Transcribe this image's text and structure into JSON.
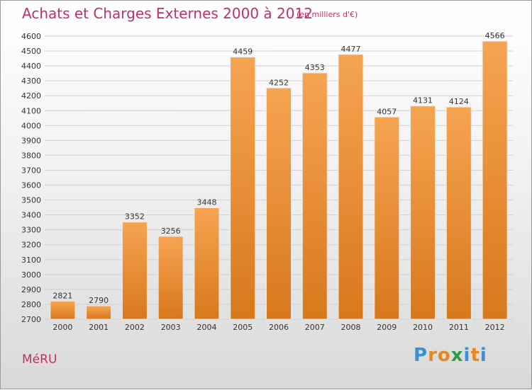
{
  "title": "Achats et Charges Externes 2000 à 2012",
  "subtitle": "(en milliers d'€)",
  "city": "MéRU",
  "logo": {
    "text": "Proxiti",
    "letters": [
      {
        "ch": "P",
        "color": "#3a8fd6"
      },
      {
        "ch": "r",
        "color": "#e6881e"
      },
      {
        "ch": "o",
        "color": "#e6881e"
      },
      {
        "ch": "x",
        "color": "#2e9b49"
      },
      {
        "ch": "i",
        "color": "#3a8fd6"
      },
      {
        "ch": "t",
        "color": "#e6881e"
      },
      {
        "ch": "i",
        "color": "#3a8fd6"
      }
    ]
  },
  "colors": {
    "accent": "#c0306a",
    "bar_top": "#f6a452",
    "bar_bottom": "#d8781c",
    "grid": "#d0d0d0",
    "axis_text": "#333333"
  },
  "chart_data": {
    "type": "bar",
    "categories": [
      "2000",
      "2001",
      "2002",
      "2003",
      "2004",
      "2005",
      "2006",
      "2007",
      "2008",
      "2009",
      "2010",
      "2011",
      "2012"
    ],
    "values": [
      2821,
      2790,
      3352,
      3256,
      3448,
      4459,
      4252,
      4353,
      4477,
      4057,
      4131,
      4124,
      4566
    ],
    "ylim": [
      2700,
      4600
    ],
    "yticks": [
      2700,
      2800,
      2900,
      3000,
      3100,
      3200,
      3300,
      3400,
      3500,
      3600,
      3700,
      3800,
      3900,
      4000,
      4100,
      4200,
      4300,
      4400,
      4500,
      4600
    ],
    "grid": true,
    "data_labels": true
  }
}
